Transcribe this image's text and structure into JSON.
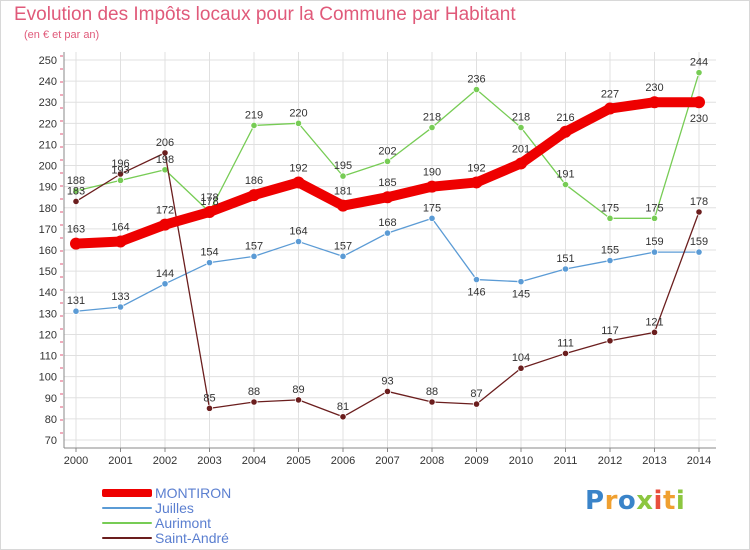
{
  "title": "Evolution des Impôts locaux pour la Commune par Habitant",
  "subtitle": "(en € et par an)",
  "logo_text": "Proxiti",
  "chart_data": {
    "type": "line",
    "title": "Evolution des Impôts locaux pour la Commune par Habitant",
    "ylabel": "(en € et par an)",
    "xlabel": "",
    "x": [
      "2000",
      "2001",
      "2002",
      "2003",
      "2004",
      "2005",
      "2006",
      "2007",
      "2008",
      "2009",
      "2010",
      "2011",
      "2012",
      "2013",
      "2014"
    ],
    "yticks": [
      "70",
      "80",
      "90",
      "100",
      "110",
      "120",
      "130",
      "140",
      "150",
      "160",
      "170",
      "180",
      "190",
      "200",
      "210",
      "220",
      "230",
      "240",
      "250"
    ],
    "ylim": [
      70,
      250
    ],
    "grid": true,
    "legend_position": "bottom-left",
    "series": [
      {
        "name": "MONTIRON",
        "color": "#ee0000",
        "values": [
          163,
          164,
          172,
          178,
          186,
          192,
          181,
          185,
          190,
          192,
          201,
          216,
          227,
          230,
          230
        ]
      },
      {
        "name": "Juilles",
        "color": "#5b9bd5",
        "values": [
          131,
          133,
          144,
          154,
          157,
          164,
          157,
          168,
          175,
          146,
          145,
          151,
          155,
          159,
          159
        ]
      },
      {
        "name": "Aurimont",
        "color": "#77cc55",
        "values": [
          188,
          193,
          198,
          178,
          219,
          220,
          195,
          202,
          218,
          236,
          218,
          191,
          175,
          175,
          244
        ]
      },
      {
        "name": "Saint-André",
        "color": "#6b1e1e",
        "values": [
          183,
          196,
          206,
          85,
          88,
          89,
          81,
          93,
          88,
          87,
          104,
          111,
          117,
          121,
          178
        ]
      }
    ]
  }
}
